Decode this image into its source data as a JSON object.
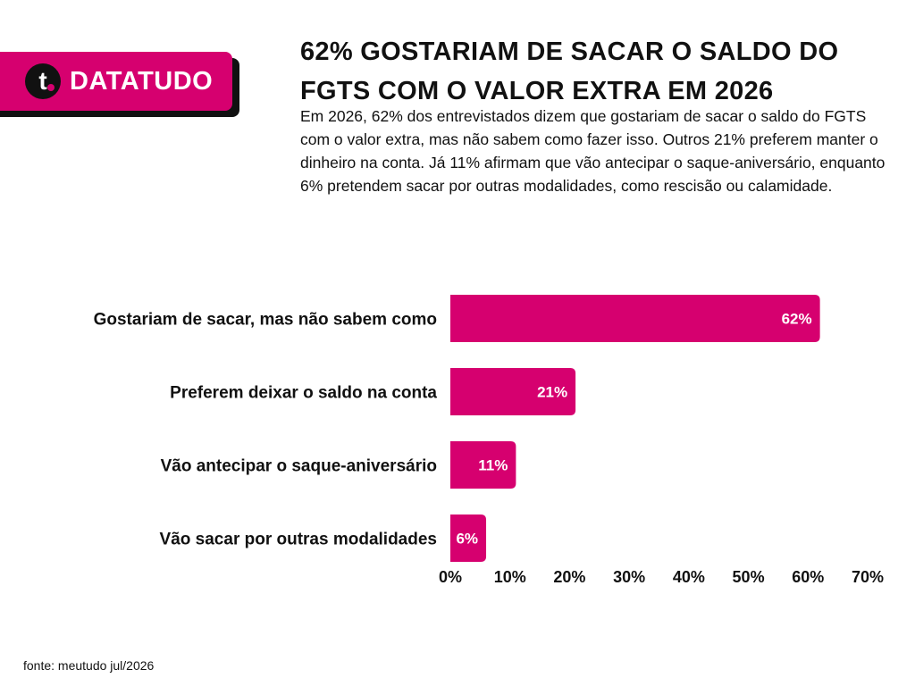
{
  "brand": {
    "name": "DATATUDO",
    "logo_icon": "t-logo-icon",
    "logo_glyph": "t",
    "accent_color": "#d6006f",
    "shadow_color": "#111111"
  },
  "header": {
    "title": "62% GOSTARIAM DE SACAR O SALDO DO FGTS COM O VALOR EXTRA EM 2026",
    "description": "Em 2026, 62% dos entrevistados dizem que gostariam de sacar o saldo do FGTS com o valor extra, mas não sabem como fazer isso. Outros 21% preferem manter o dinheiro na conta. Já 11% afirmam que vão antecipar o saque-aniversário, enquanto 6% pretendem sacar por outras modalidades, como rescisão ou calamidade."
  },
  "chart_data": {
    "type": "bar",
    "orientation": "horizontal",
    "categories": [
      "Gostariam de sacar, mas não sabem como",
      "Preferem deixar o saldo na conta",
      "Vão antecipar o saque-aniversário",
      "Vão sacar por outras modalidades"
    ],
    "values": [
      62,
      21,
      11,
      6
    ],
    "data_labels": [
      "62%",
      "21%",
      "11%",
      "6%"
    ],
    "xlim": [
      0,
      70
    ],
    "x_ticks": [
      "0%",
      "10%",
      "20%",
      "30%",
      "40%",
      "50%",
      "60%",
      "70%"
    ],
    "grid": false,
    "bar_color": "#d6006f",
    "title": "",
    "xlabel": "",
    "ylabel": ""
  },
  "footer": {
    "source": "fonte: meutudo jul/2026"
  }
}
